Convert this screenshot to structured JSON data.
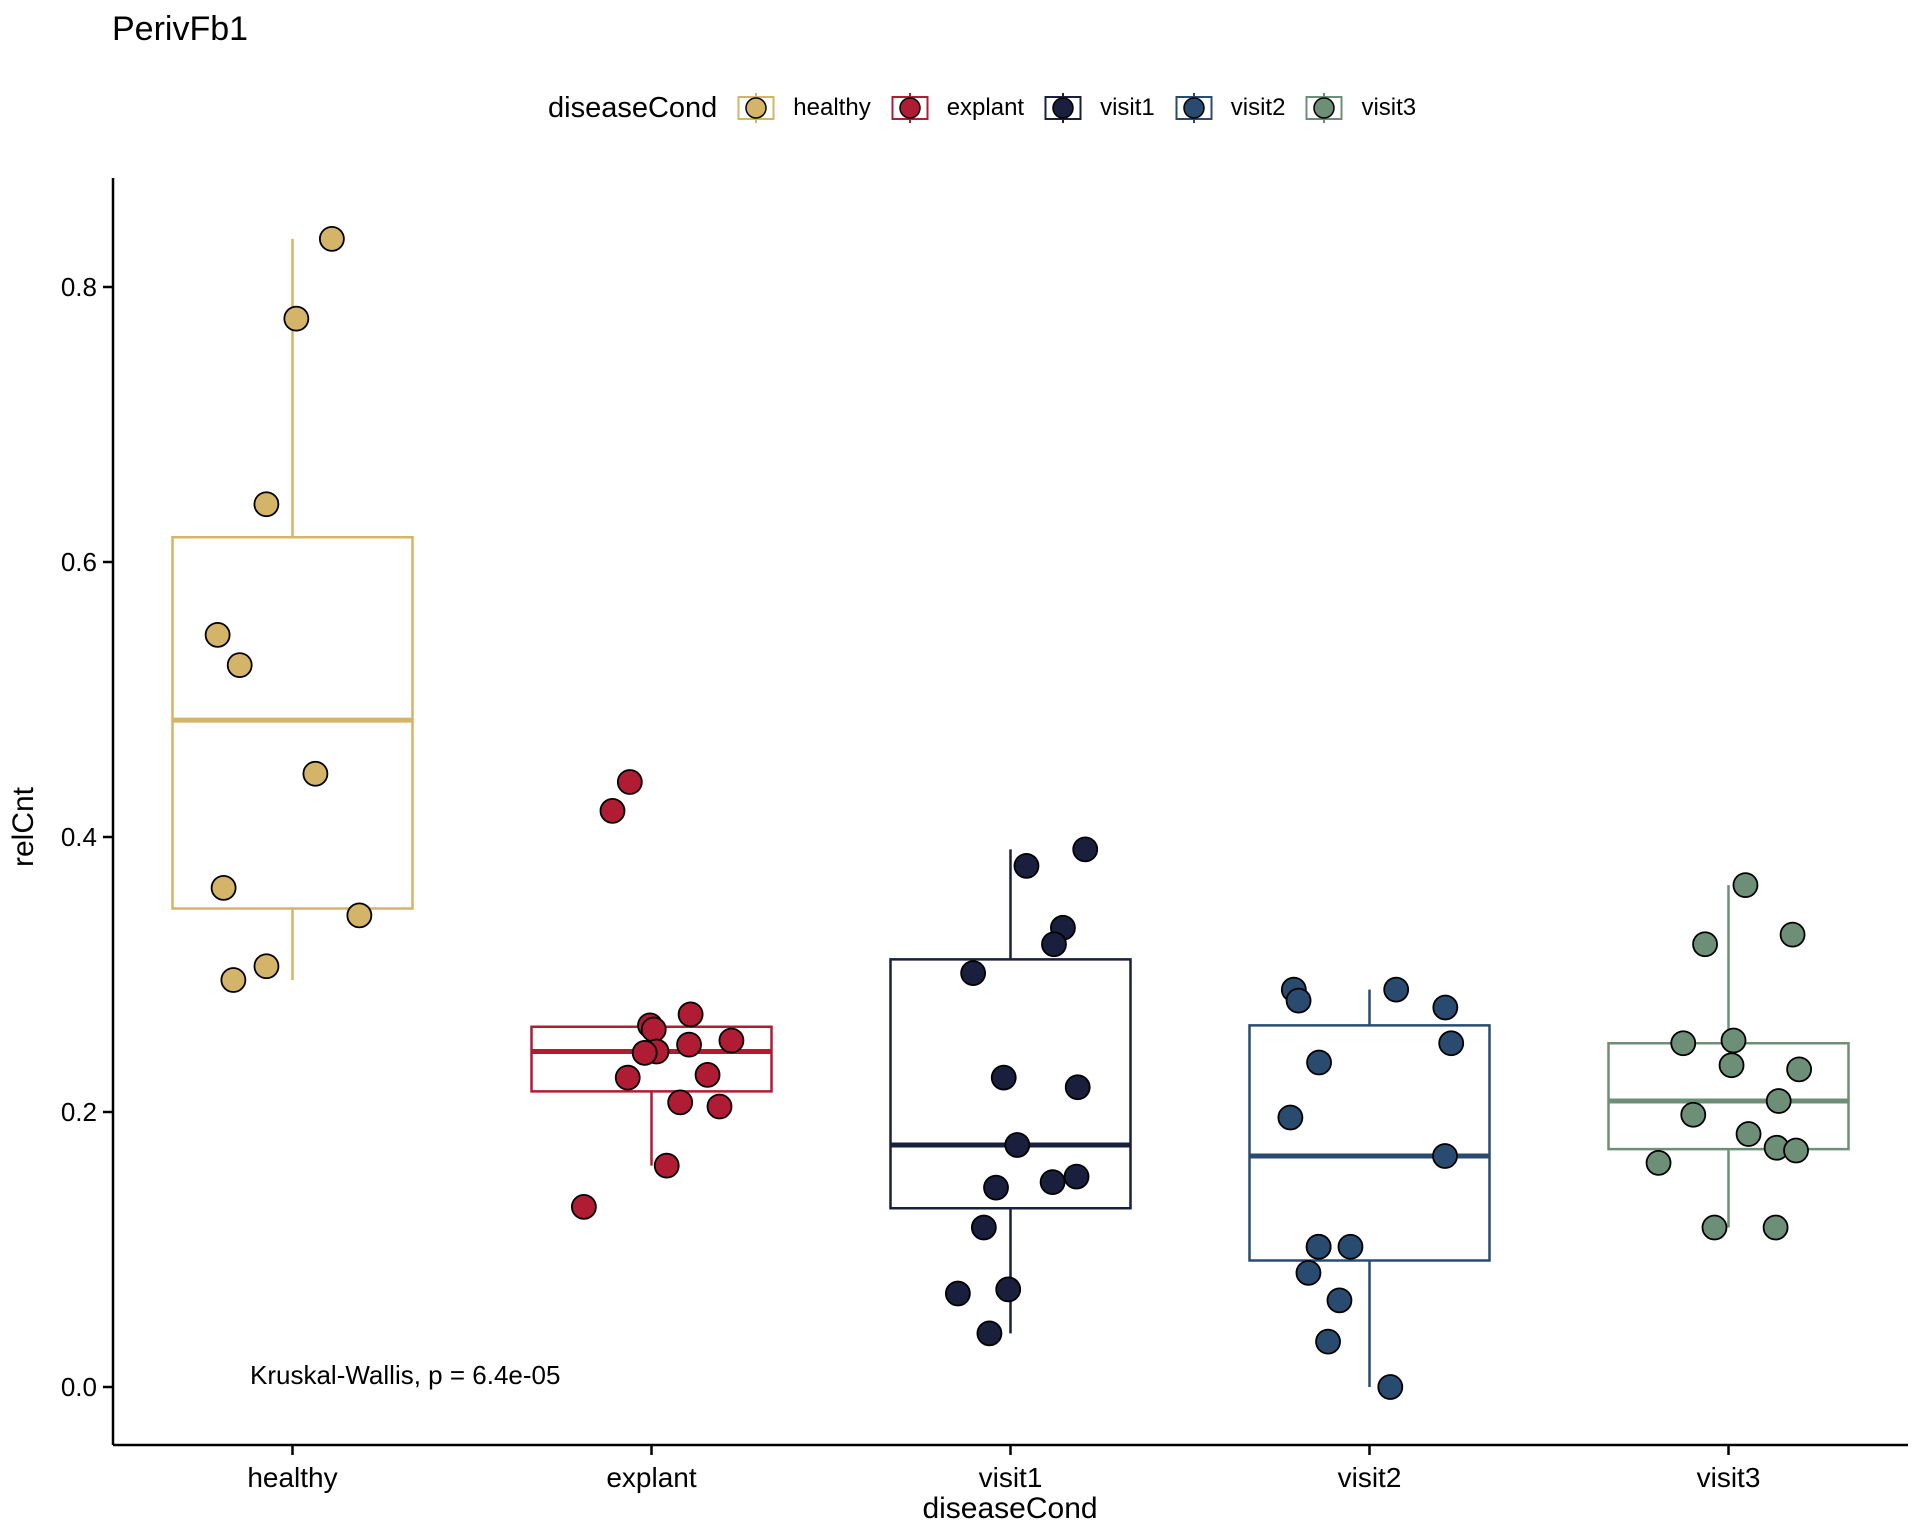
{
  "chart_data": {
    "type": "box",
    "title": "PerivFb1",
    "xlabel": "diseaseCond",
    "ylabel": "relCnt",
    "ylim": [
      -0.04,
      0.88
    ],
    "yticks": [
      0.0,
      0.2,
      0.4,
      0.6,
      0.8
    ],
    "ytick_labels": [
      "0.0",
      "0.2",
      "0.4",
      "0.6",
      "0.8"
    ],
    "categories": [
      "healthy",
      "explant",
      "visit1",
      "visit2",
      "visit3"
    ],
    "legend": {
      "title": "diseaseCond",
      "placement": "top",
      "entries": [
        "healthy",
        "explant",
        "visit1",
        "visit2",
        "visit3"
      ]
    },
    "annotation": "Kruskal-Wallis, p = 6.4e-05",
    "grid": false,
    "series": [
      {
        "category": "healthy",
        "color": "#D4B469",
        "box": {
          "whisker_low": 0.296,
          "q1": 0.348,
          "median": 0.485,
          "q3": 0.618,
          "whisker_high": 0.835
        },
        "points": [
          0.835,
          0.777,
          0.642,
          0.547,
          0.525,
          0.446,
          0.363,
          0.343,
          0.306,
          0.296
        ]
      },
      {
        "category": "explant",
        "color": "#B01C34",
        "box": {
          "whisker_low": 0.161,
          "q1": 0.215,
          "median": 0.244,
          "q3": 0.262,
          "whisker_high": 0.271
        },
        "points": [
          0.44,
          0.419,
          0.271,
          0.263,
          0.26,
          0.252,
          0.249,
          0.244,
          0.243,
          0.227,
          0.225,
          0.207,
          0.204,
          0.161,
          0.131
        ]
      },
      {
        "category": "visit1",
        "color": "#1A1F3D",
        "box": {
          "whisker_low": 0.039,
          "q1": 0.13,
          "median": 0.176,
          "q3": 0.311,
          "whisker_high": 0.391
        },
        "points": [
          0.391,
          0.379,
          0.334,
          0.322,
          0.301,
          0.225,
          0.218,
          0.176,
          0.153,
          0.149,
          0.145,
          0.116,
          0.071,
          0.068,
          0.039
        ]
      },
      {
        "category": "visit2",
        "color": "#2A4B70",
        "box": {
          "whisker_low": 0.0,
          "q1": 0.092,
          "median": 0.168,
          "q3": 0.263,
          "whisker_high": 0.289
        },
        "points": [
          0.289,
          0.289,
          0.281,
          0.276,
          0.25,
          0.236,
          0.196,
          0.168,
          0.102,
          0.102,
          0.102,
          0.083,
          0.063,
          0.033,
          0.0
        ]
      },
      {
        "category": "visit3",
        "color": "#6E8F77",
        "box": {
          "whisker_low": 0.116,
          "q1": 0.173,
          "median": 0.208,
          "q3": 0.25,
          "whisker_high": 0.365
        },
        "points": [
          0.365,
          0.329,
          0.322,
          0.252,
          0.25,
          0.234,
          0.231,
          0.208,
          0.198,
          0.184,
          0.174,
          0.172,
          0.163,
          0.116,
          0.116
        ]
      }
    ]
  }
}
